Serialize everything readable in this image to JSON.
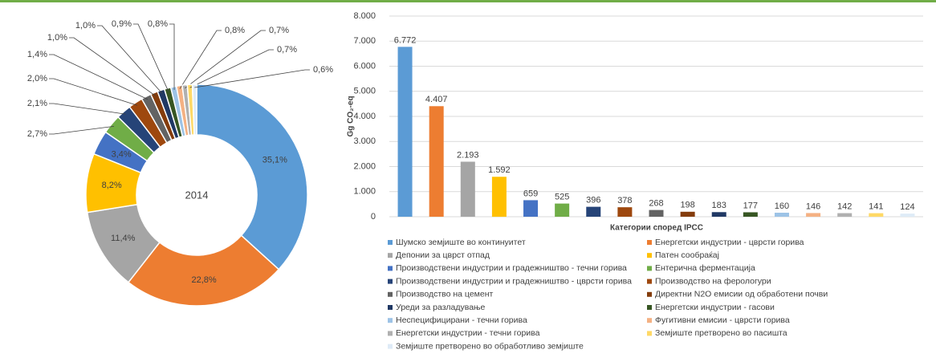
{
  "chart_data": [
    {
      "type": "pie",
      "center_label": "2014",
      "values": [
        35.1,
        22.8,
        11.4,
        8.2,
        3.4,
        2.7,
        2.1,
        2.0,
        1.4,
        1.0,
        1.0,
        0.9,
        0.8,
        0.8,
        0.7,
        0.7,
        0.6
      ],
      "value_labels": [
        "35,1%",
        "22,8%",
        "11,4%",
        "8,2%",
        "3,4%",
        "2,7%",
        "2,1%",
        "2,0%",
        "1,4%",
        "1,0%",
        "1,0%",
        "0,9%",
        "0,8%",
        "0,8%",
        "0,7%",
        "0,7%",
        "0,6%"
      ]
    },
    {
      "type": "bar",
      "xlabel": "Категории според IPCC",
      "ylabel": "Gg CO₂-eq",
      "categories": [
        "Шумско земјиште во континуитет",
        "Енергетски индустрии - цврсти горива",
        "Депонии за цврст отпад",
        "Патен сообраќај",
        "Производствени индустрии и градежништво - течни горива",
        "Ентерична ферментација",
        "Производствени индустрии и градежништво - цврсти горива",
        "Производство на ферологури",
        "Производство на цемент",
        "Директни N2O емисии од обработени почви",
        "Уреди за разладување",
        "Енергетски индустрии - гасови",
        "Неспецифицирани - течни горива",
        "Фугитивни емисии - цврсти горива",
        "Енергетски индустрии - течни горива",
        "Земјиште претворено во пасишта",
        "Земјиште претворено во обработливо земјиште"
      ],
      "colors": [
        "#5b9bd5",
        "#ed7d31",
        "#a5a5a5",
        "#ffc000",
        "#4472c4",
        "#70ad47",
        "#264478",
        "#9e480e",
        "#636363",
        "#843c0c",
        "#203864",
        "#375623",
        "#9dc3e6",
        "#f4b183",
        "#b0b0b0",
        "#ffd966",
        "#deebf7"
      ],
      "values": [
        6772,
        4407,
        2193,
        1592,
        659,
        525,
        396,
        378,
        268,
        198,
        183,
        177,
        160,
        146,
        142,
        141,
        124
      ],
      "value_labels": [
        "6.772",
        "4.407",
        "2.193",
        "1.592",
        "659",
        "525",
        "396",
        "378",
        "268",
        "198",
        "183",
        "177",
        "160",
        "146",
        "142",
        "141",
        "124"
      ],
      "ylim": [
        0,
        8000
      ],
      "yticks": [
        0,
        {
          "value": 1000,
          "label": "1.000"
        },
        {
          "value": 2000,
          "label": "2.000"
        },
        {
          "value": 3000,
          "label": "3.000"
        },
        {
          "value": 4000,
          "label": "4.000"
        },
        {
          "value": 5000,
          "label": "5.000"
        },
        {
          "value": 6000,
          "label": "6.000"
        },
        {
          "value": 7000,
          "label": "7.000"
        },
        {
          "value": 8000,
          "label": "8.000"
        }
      ],
      "grid": true
    }
  ]
}
